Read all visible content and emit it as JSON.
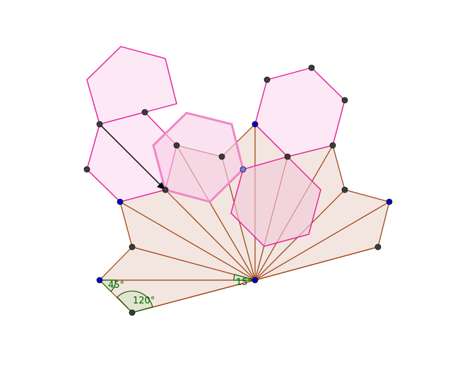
{
  "colors": {
    "background": "#ffffff",
    "fan_fill": "#f3e6e0",
    "fan_stroke": "#9c3b08",
    "hex_fill": "#fbe1f1",
    "hex_stroke": "#e6199c",
    "hex_highlight_fill": "#f8cfe7",
    "hex_highlight_stroke": "#f086c6",
    "overlap_fill": "#f2c9d9",
    "point_gray": "#3c3c3c",
    "point_blue": "#0000cc",
    "point_lightblue": "#7b7be6",
    "angle_color": "#006400",
    "angle_fill": "#e3e6cf",
    "vector_color": "#000000"
  },
  "angles": {
    "a45": "45°",
    "a120": "120°",
    "a_center": "15°"
  }
}
